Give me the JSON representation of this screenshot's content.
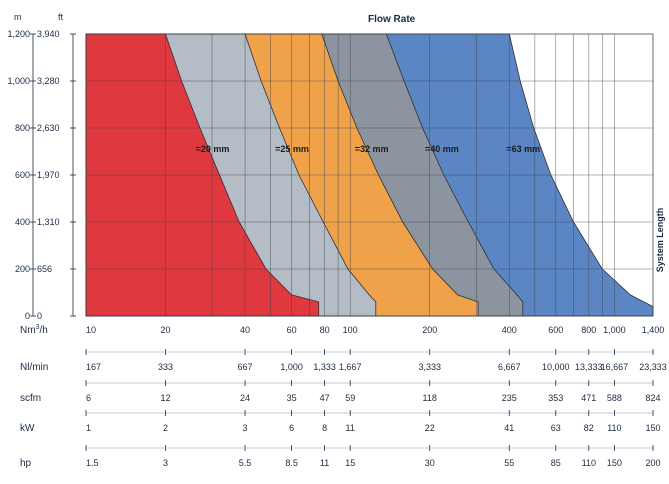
{
  "chart_data": {
    "type": "area",
    "title": "Flow Rate",
    "right_axis_label": "System Length",
    "x_scale": "log",
    "x_range": [
      10,
      1400
    ],
    "y_range_m": [
      0,
      1200
    ],
    "y_left": {
      "units": [
        "m",
        "ft"
      ],
      "ticks_m": [
        0,
        200,
        400,
        600,
        800,
        1000,
        1200
      ],
      "labels_m": [
        "0",
        "200",
        "400",
        "600",
        "800",
        "1,000",
        "1,200"
      ],
      "labels_ft": [
        "0",
        "656",
        "1,310",
        "1,970",
        "2,630",
        "3,280",
        "3,940"
      ]
    },
    "series": [
      {
        "name": "=20 mm",
        "color": "#e0383f",
        "boundary": [
          [
            20,
            1200
          ],
          [
            23,
            1000
          ],
          [
            27,
            800
          ],
          [
            32,
            600
          ],
          [
            38,
            400
          ],
          [
            48,
            200
          ],
          [
            60,
            90
          ],
          [
            76,
            60
          ],
          [
            76,
            0
          ]
        ]
      },
      {
        "name": "=25 mm",
        "color": "#b4bcc6",
        "boundary": [
          [
            40,
            1200
          ],
          [
            46,
            1000
          ],
          [
            54,
            800
          ],
          [
            64,
            600
          ],
          [
            79,
            400
          ],
          [
            98,
            200
          ],
          [
            118,
            90
          ],
          [
            125,
            60
          ],
          [
            125,
            0
          ]
        ]
      },
      {
        "name": "=32 mm",
        "color": "#f0a24a",
        "boundary": [
          [
            78,
            1200
          ],
          [
            90,
            1000
          ],
          [
            106,
            800
          ],
          [
            128,
            600
          ],
          [
            158,
            400
          ],
          [
            205,
            200
          ],
          [
            255,
            90
          ],
          [
            305,
            60
          ],
          [
            305,
            0
          ]
        ]
      },
      {
        "name": "=40 mm",
        "color": "#8c949f",
        "boundary": [
          [
            137,
            1200
          ],
          [
            160,
            1000
          ],
          [
            188,
            800
          ],
          [
            226,
            600
          ],
          [
            280,
            400
          ],
          [
            350,
            200
          ],
          [
            420,
            100
          ],
          [
            450,
            60
          ],
          [
            450,
            0
          ]
        ]
      },
      {
        "name": "=63 mm",
        "color": "#5b86c3",
        "boundary": [
          [
            400,
            1200
          ],
          [
            440,
            1000
          ],
          [
            495,
            800
          ],
          [
            575,
            600
          ],
          [
            700,
            400
          ],
          [
            900,
            200
          ],
          [
            1150,
            90
          ],
          [
            1400,
            40
          ],
          [
            1400,
            0
          ]
        ]
      }
    ],
    "scales": [
      {
        "name": "Nm³/h",
        "values": [
          10,
          20,
          40,
          60,
          80,
          100,
          200,
          400,
          600,
          800,
          1000,
          1400
        ],
        "labels": [
          "10",
          "20",
          "40",
          "60",
          "80",
          "100",
          "200",
          "400",
          "600",
          "800",
          "1,000",
          "1,400"
        ]
      },
      {
        "name": "Nl/min",
        "values": [
          10,
          20,
          40,
          60,
          80,
          100,
          200,
          400,
          600,
          800,
          1000,
          1400
        ],
        "labels": [
          "167",
          "333",
          "667",
          "1,000",
          "1,333",
          "1,667",
          "3,333",
          "6,667",
          "10,000",
          "13,333",
          "16,667",
          "23,333"
        ]
      },
      {
        "name": "scfm",
        "values": [
          10,
          20,
          40,
          60,
          80,
          100,
          200,
          400,
          600,
          800,
          1000,
          1400
        ],
        "labels": [
          "6",
          "12",
          "24",
          "35",
          "47",
          "59",
          "118",
          "235",
          "353",
          "471",
          "588",
          "824"
        ]
      },
      {
        "name": "kW",
        "values": [
          10,
          20,
          40,
          60,
          80,
          100,
          200,
          400,
          600,
          800,
          1000,
          1400
        ],
        "labels": [
          "1",
          "2",
          "3",
          "6",
          "8",
          "11",
          "22",
          "41",
          "63",
          "82",
          "110",
          "150"
        ]
      },
      {
        "name": "hp",
        "values": [
          10,
          20,
          40,
          60,
          80,
          100,
          200,
          400,
          600,
          800,
          1000,
          1400
        ],
        "labels": [
          "1.5",
          "3",
          "5.5",
          "8.5",
          "11",
          "15",
          "30",
          "55",
          "85",
          "110",
          "150",
          "200"
        ]
      }
    ]
  }
}
